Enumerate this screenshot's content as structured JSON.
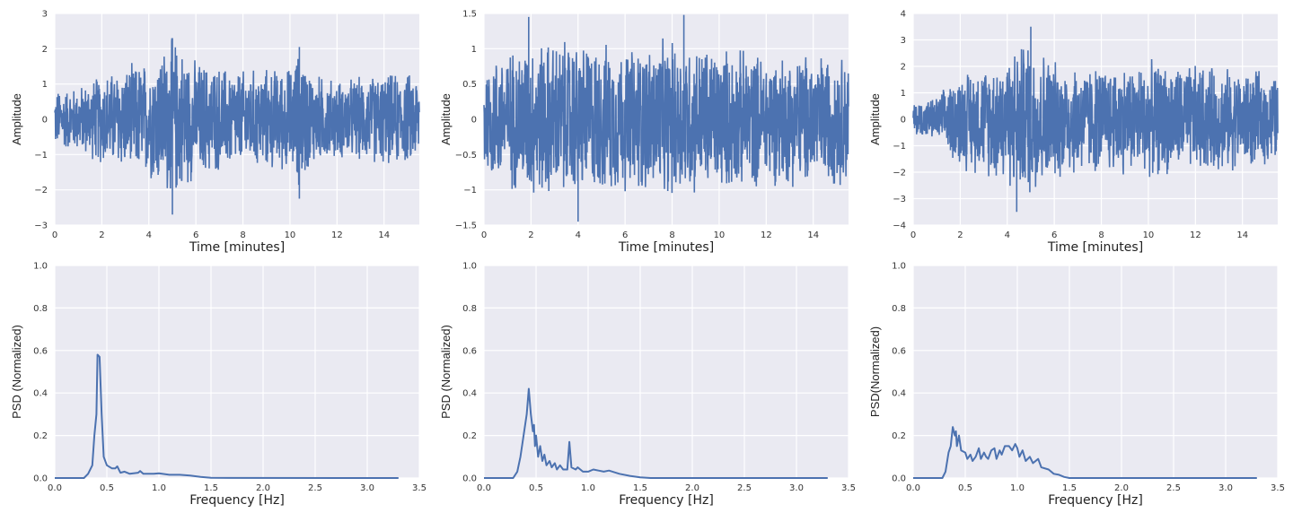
{
  "chart_data": [
    {
      "type": "line",
      "panel": "top-left",
      "xlabel": "Time [minutes]",
      "ylabel": "Amplitude",
      "xlim": [
        0,
        15.5
      ],
      "ylim": [
        -3,
        3
      ],
      "xticks": [
        0,
        2,
        4,
        6,
        8,
        10,
        12,
        14
      ],
      "yticks": [
        -3,
        -2,
        -1,
        0,
        1,
        2,
        3
      ],
      "grid": true,
      "color": "#4C72B0",
      "background": "#EAEAF2",
      "amplitude_envelope": {
        "t": [
          0,
          1,
          2,
          3,
          4,
          5,
          6,
          8,
          10,
          10.4,
          11,
          12,
          14,
          15.5
        ],
        "peak": [
          0.9,
          1.0,
          1.4,
          1.6,
          1.8,
          2.5,
          1.8,
          1.5,
          1.6,
          2.1,
          1.4,
          1.2,
          1.4,
          1.4
        ]
      },
      "notable_points": [
        {
          "t": 5.0,
          "y": 2.3
        },
        {
          "t": 5.0,
          "y": -2.7
        },
        {
          "t": 10.4,
          "y": 2.05
        },
        {
          "t": 10.4,
          "y": -2.25
        }
      ]
    },
    {
      "type": "line",
      "panel": "top-middle",
      "xlabel": "Time [minutes]",
      "ylabel": "Amplitude",
      "xlim": [
        0,
        15.5
      ],
      "ylim": [
        -1.5,
        1.5
      ],
      "xticks": [
        0,
        2,
        4,
        6,
        8,
        10,
        12,
        14
      ],
      "yticks": [
        -1.5,
        -1.0,
        -0.5,
        0.0,
        0.5,
        1.0,
        1.5
      ],
      "grid": true,
      "color": "#4C72B0",
      "background": "#EAEAF2",
      "amplitude_envelope": {
        "t": [
          0,
          2,
          4,
          6,
          8,
          10,
          12,
          14,
          15.5
        ],
        "peak": [
          0.9,
          1.2,
          1.2,
          1.1,
          1.2,
          1.1,
          1.0,
          1.0,
          1.0
        ]
      },
      "notable_points": [
        {
          "t": 1.9,
          "y": 1.45
        },
        {
          "t": 8.5,
          "y": 1.48
        },
        {
          "t": 4.0,
          "y": -1.45
        }
      ]
    },
    {
      "type": "line",
      "panel": "top-right",
      "xlabel": "Time [minutes]",
      "ylabel": "Amplitude",
      "xlim": [
        0,
        15.5
      ],
      "ylim": [
        -4,
        4
      ],
      "xticks": [
        0,
        2,
        4,
        6,
        8,
        10,
        12,
        14
      ],
      "yticks": [
        -4,
        -3,
        -2,
        -1,
        0,
        1,
        2,
        3,
        4
      ],
      "grid": true,
      "color": "#4C72B0",
      "background": "#EAEAF2",
      "amplitude_envelope": {
        "t": [
          0,
          1,
          1.5,
          2,
          3,
          4.5,
          5,
          6,
          8,
          10,
          12,
          14,
          15.5
        ],
        "peak": [
          0.7,
          0.9,
          1.4,
          2.0,
          2.2,
          3.0,
          3.3,
          2.4,
          2.2,
          2.3,
          2.2,
          2.0,
          1.8
        ]
      },
      "notable_points": [
        {
          "t": 5.0,
          "y": 3.5
        },
        {
          "t": 4.4,
          "y": -3.5
        }
      ]
    },
    {
      "type": "line",
      "panel": "bottom-left",
      "xlabel": "Frequency [Hz]",
      "ylabel": "PSD (Normalized)",
      "xlim": [
        0,
        3.5
      ],
      "ylim": [
        0,
        1.0
      ],
      "xticks": [
        "0.0",
        "0.5",
        "1.0",
        "1.5",
        "2.0",
        "2.5",
        "3.0",
        "3.5"
      ],
      "yticks": [
        "0.0",
        "0.2",
        "0.4",
        "0.6",
        "0.8",
        "1.0"
      ],
      "grid": true,
      "color": "#4C72B0",
      "background": "#EAEAF2",
      "x": [
        0,
        0.28,
        0.32,
        0.36,
        0.38,
        0.4,
        0.41,
        0.43,
        0.45,
        0.47,
        0.5,
        0.55,
        0.58,
        0.6,
        0.63,
        0.67,
        0.72,
        0.8,
        0.82,
        0.85,
        0.95,
        1.0,
        1.1,
        1.2,
        1.3,
        1.4,
        1.5,
        3.3
      ],
      "y": [
        0,
        0,
        0.02,
        0.06,
        0.2,
        0.3,
        0.58,
        0.57,
        0.3,
        0.1,
        0.06,
        0.045,
        0.045,
        0.055,
        0.025,
        0.03,
        0.02,
        0.025,
        0.033,
        0.02,
        0.02,
        0.022,
        0.015,
        0.015,
        0.012,
        0.005,
        0.001,
        0
      ]
    },
    {
      "type": "line",
      "panel": "bottom-middle",
      "xlabel": "Frequency [Hz]",
      "ylabel": "PSD (Normalized)",
      "xlim": [
        0,
        3.5
      ],
      "ylim": [
        0,
        1.0
      ],
      "xticks": [
        "0.0",
        "0.5",
        "1.0",
        "1.5",
        "2.0",
        "2.5",
        "3.0",
        "3.5"
      ],
      "yticks": [
        "0.0",
        "0.2",
        "0.4",
        "0.6",
        "0.8",
        "1.0"
      ],
      "grid": true,
      "color": "#4C72B0",
      "background": "#EAEAF2",
      "x": [
        0,
        0.28,
        0.32,
        0.35,
        0.38,
        0.41,
        0.43,
        0.45,
        0.47,
        0.48,
        0.49,
        0.5,
        0.52,
        0.54,
        0.56,
        0.58,
        0.6,
        0.63,
        0.65,
        0.68,
        0.7,
        0.73,
        0.76,
        0.8,
        0.82,
        0.84,
        0.88,
        0.9,
        0.95,
        1.0,
        1.05,
        1.1,
        1.15,
        1.2,
        1.3,
        1.4,
        1.5,
        1.6,
        3.3
      ],
      "y": [
        0,
        0,
        0.03,
        0.1,
        0.2,
        0.3,
        0.42,
        0.3,
        0.22,
        0.25,
        0.15,
        0.2,
        0.1,
        0.15,
        0.08,
        0.11,
        0.06,
        0.08,
        0.05,
        0.07,
        0.04,
        0.06,
        0.04,
        0.04,
        0.17,
        0.05,
        0.04,
        0.05,
        0.03,
        0.03,
        0.04,
        0.035,
        0.03,
        0.035,
        0.02,
        0.01,
        0.003,
        0,
        0
      ]
    },
    {
      "type": "line",
      "panel": "bottom-right",
      "xlabel": "Frequency [Hz]",
      "ylabel": "PSD(Normalized)",
      "xlim": [
        0,
        3.5
      ],
      "ylim": [
        0,
        1.0
      ],
      "xticks": [
        "0.0",
        "0.5",
        "1.0",
        "1.5",
        "2.0",
        "2.5",
        "3.0",
        "3.5"
      ],
      "yticks": [
        "0.0",
        "0.2",
        "0.4",
        "0.6",
        "0.8",
        "1.0"
      ],
      "grid": true,
      "color": "#4C72B0",
      "background": "#EAEAF2",
      "x": [
        0,
        0.28,
        0.31,
        0.34,
        0.36,
        0.38,
        0.4,
        0.41,
        0.42,
        0.44,
        0.46,
        0.5,
        0.52,
        0.55,
        0.57,
        0.6,
        0.63,
        0.65,
        0.68,
        0.7,
        0.72,
        0.75,
        0.78,
        0.8,
        0.83,
        0.85,
        0.88,
        0.92,
        0.95,
        0.98,
        1.0,
        1.02,
        1.05,
        1.08,
        1.12,
        1.15,
        1.2,
        1.23,
        1.3,
        1.35,
        1.4,
        1.45,
        1.5,
        3.3
      ],
      "y": [
        0,
        0,
        0.03,
        0.12,
        0.15,
        0.24,
        0.2,
        0.22,
        0.15,
        0.2,
        0.13,
        0.12,
        0.09,
        0.11,
        0.08,
        0.1,
        0.14,
        0.09,
        0.12,
        0.1,
        0.09,
        0.13,
        0.14,
        0.09,
        0.13,
        0.11,
        0.15,
        0.15,
        0.13,
        0.16,
        0.14,
        0.1,
        0.13,
        0.08,
        0.1,
        0.07,
        0.09,
        0.05,
        0.04,
        0.02,
        0.015,
        0.005,
        0,
        0
      ]
    }
  ]
}
